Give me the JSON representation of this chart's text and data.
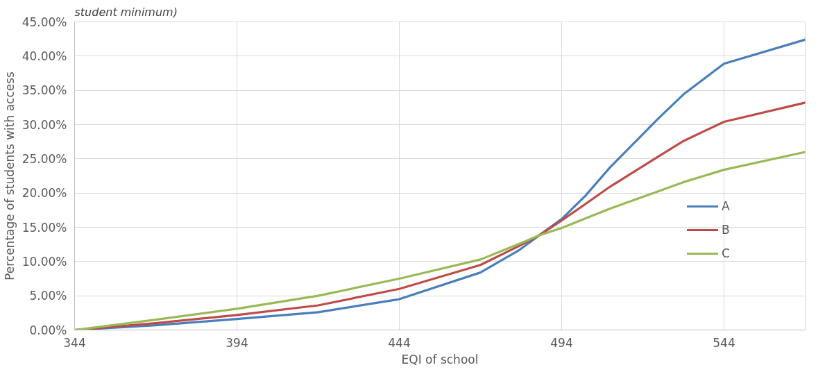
{
  "chart_data": {
    "type": "line",
    "title": "student minimum)",
    "xlabel": "EQI of school",
    "ylabel": "Percentage of students with access",
    "x": [
      344,
      369,
      394,
      419,
      444,
      469,
      481,
      487,
      494,
      501.3,
      508.8,
      524,
      531.5,
      544,
      569
    ],
    "series": [
      {
        "name": "A",
        "color": "#4a7ebb",
        "values": [
          0,
          0.7,
          1.6,
          2.6,
          4.5,
          8.4,
          11.7,
          13.8,
          16.2,
          19.6,
          23.7,
          31,
          34.4,
          38.9,
          42.4
        ]
      },
      {
        "name": "B",
        "color": "#be4b48",
        "values": [
          0,
          1.0,
          2.2,
          3.6,
          6.0,
          9.5,
          12.3,
          13.8,
          16,
          18.4,
          20.9,
          25.4,
          27.6,
          30.4,
          33.2
        ]
      },
      {
        "name": "C",
        "color": "#98b954",
        "values": [
          0,
          1.5,
          3.1,
          5.0,
          7.5,
          10.3,
          12.6,
          13.8,
          14.9,
          16.3,
          17.7,
          20.3,
          21.6,
          23.4,
          26.0
        ]
      }
    ],
    "xlim": [
      344,
      569
    ],
    "xticks": [
      344,
      394,
      444,
      494,
      544
    ],
    "ylim": [
      0,
      45
    ],
    "yticks": [
      {
        "value": 0,
        "label": "0.00%"
      },
      {
        "value": 5,
        "label": "5.00%"
      },
      {
        "value": 10,
        "label": "10.00%"
      },
      {
        "value": 15,
        "label": "15.00%"
      },
      {
        "value": 20,
        "label": "20.00%"
      },
      {
        "value": 25,
        "label": "25.00%"
      },
      {
        "value": 30,
        "label": "30.00%"
      },
      {
        "value": 35,
        "label": "35.00%"
      },
      {
        "value": 40,
        "label": "40.00%"
      },
      {
        "value": 45,
        "label": "45.00%"
      }
    ],
    "grid": true,
    "legend": "right",
    "line_style": "solid"
  }
}
